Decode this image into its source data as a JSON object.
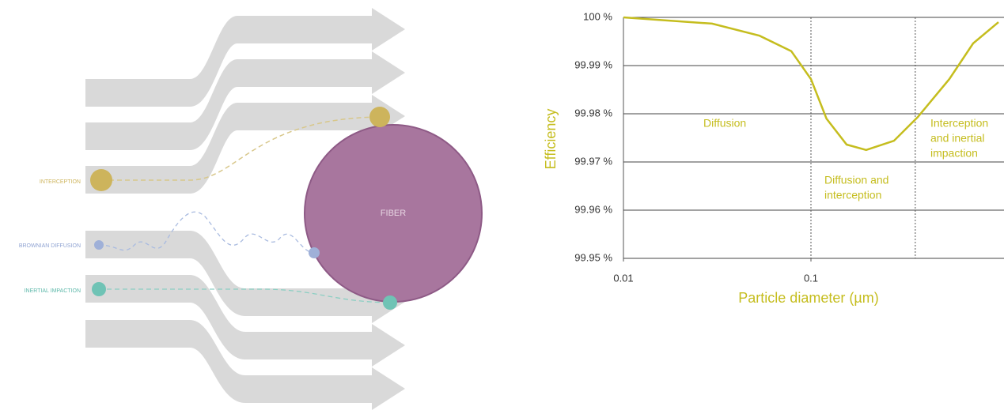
{
  "diagram": {
    "fiber_label": "FIBER",
    "mechanisms": [
      "INTERCEPTION",
      "BROWNIAN DIFFUSION",
      "INERTIAL IMPACTION"
    ]
  },
  "chart_data": {
    "type": "line",
    "xlabel": "Particle diameter (µm)",
    "ylabel": "Efficiency",
    "log_x": true,
    "grid": true,
    "color": "#c5bd1e",
    "x": [
      0.01,
      0.0297,
      0.0532,
      0.0785,
      0.1,
      0.121,
      0.155,
      0.197,
      0.277,
      0.371,
      0.547,
      0.733,
      1.0
    ],
    "values": [
      100,
      99.9987,
      99.9962,
      99.993,
      99.9872,
      99.979,
      99.9736,
      99.9725,
      99.9744,
      99.9793,
      99.9872,
      99.9946,
      99.999
    ],
    "xlim": [
      0.01,
      1
    ],
    "xticks": [
      0.01,
      0.1
    ],
    "ylim": [
      99.95,
      100
    ],
    "yticks": [
      {
        "value": 99.95,
        "label": "99.95 %"
      },
      {
        "value": 99.96,
        "label": "99.96 %"
      },
      {
        "value": 99.97,
        "label": "99.97 %"
      },
      {
        "value": 99.98,
        "label": "99.98 %"
      },
      {
        "value": 99.99,
        "label": "99.99 %"
      },
      {
        "value": 100,
        "label": "100 %"
      }
    ],
    "dividers": [
      0.1,
      0.36
    ],
    "annotations": [
      [
        "Diffusion"
      ],
      [
        "Diffusion and",
        "interception"
      ],
      [
        "Interception",
        "and inertial",
        "impaction"
      ]
    ]
  }
}
